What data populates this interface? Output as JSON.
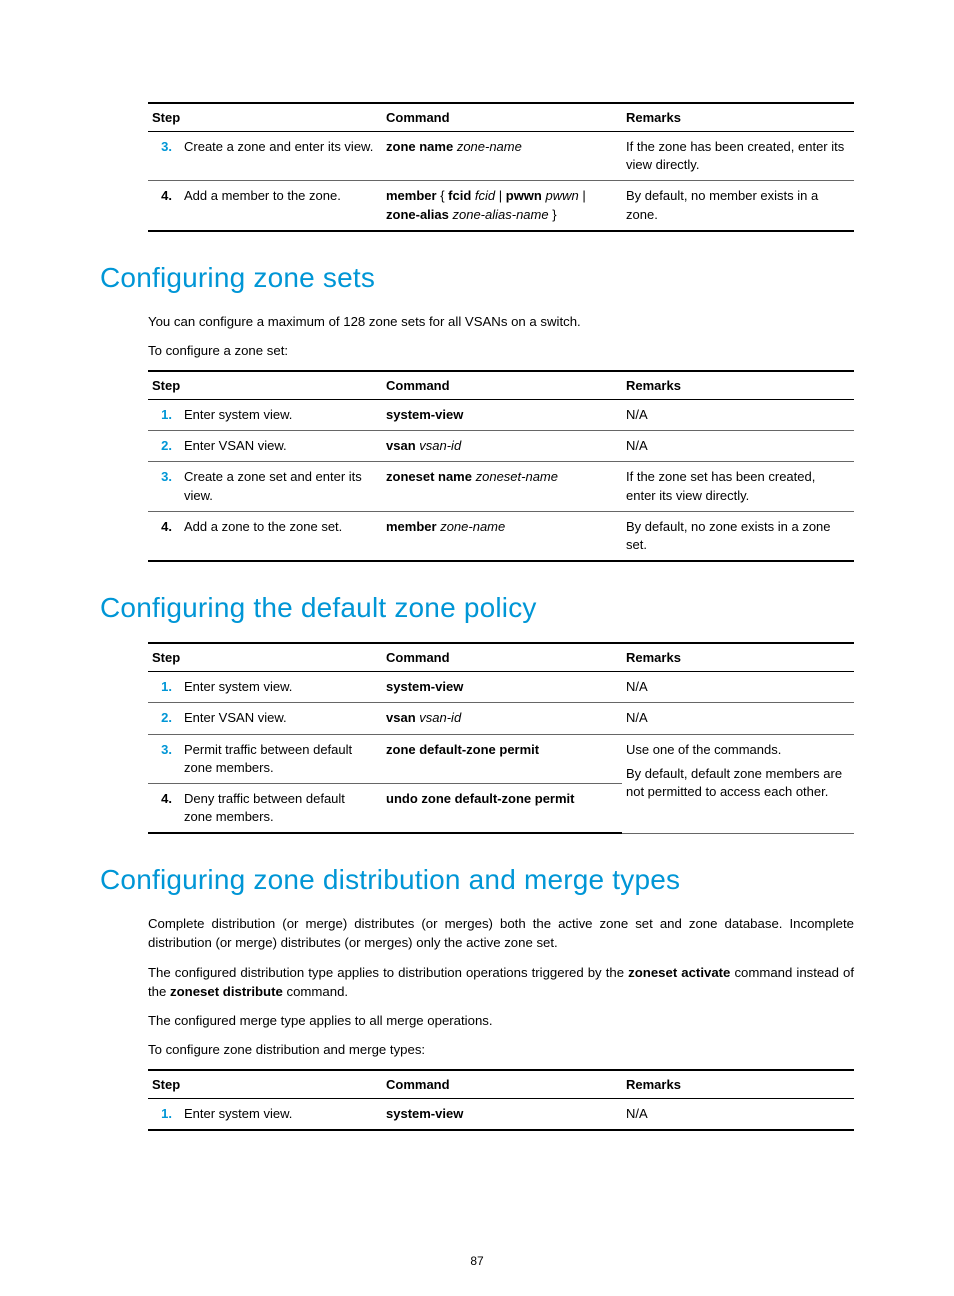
{
  "colors": {
    "accent": "#0096d6",
    "text": "#000000",
    "rule_heavy": "#000000",
    "rule_light": "#666666",
    "bg": "#ffffff"
  },
  "page_number": "87",
  "table1": {
    "headers": {
      "step": "Step",
      "command": "Command",
      "remarks": "Remarks"
    },
    "rows": [
      {
        "num": "3.",
        "num_color": "accent",
        "step": "Create a zone and enter its view.",
        "cmd_parts": [
          {
            "t": "zone name",
            "b": true
          },
          {
            "t": " "
          },
          {
            "t": "zone-name",
            "i": true
          }
        ],
        "remarks": "If the zone has been created, enter its view directly."
      },
      {
        "num": "4.",
        "num_color": "black",
        "step": "Add a member to the zone.",
        "cmd_parts": [
          {
            "t": "member",
            "b": true
          },
          {
            "t": " { "
          },
          {
            "t": "fcid",
            "b": true
          },
          {
            "t": " "
          },
          {
            "t": "fcid",
            "i": true
          },
          {
            "t": " | "
          },
          {
            "t": "pwwn",
            "b": true
          },
          {
            "t": " "
          },
          {
            "t": "pwwn",
            "i": true
          },
          {
            "t": " | "
          },
          {
            "t": "zone-alias",
            "b": true
          },
          {
            "t": " "
          },
          {
            "t": "zone-alias-name",
            "i": true
          },
          {
            "t": " }"
          }
        ],
        "remarks": "By default, no member exists in a zone."
      }
    ]
  },
  "sec_zone_sets": {
    "title": "Configuring zone sets",
    "p1": "You can configure a maximum of 128 zone sets for all VSANs on a switch.",
    "p2": "To configure a zone set:"
  },
  "table2": {
    "headers": {
      "step": "Step",
      "command": "Command",
      "remarks": "Remarks"
    },
    "rows": [
      {
        "num": "1.",
        "num_color": "accent",
        "step": "Enter system view.",
        "cmd_parts": [
          {
            "t": "system-view",
            "b": true
          }
        ],
        "remarks": "N/A"
      },
      {
        "num": "2.",
        "num_color": "accent",
        "step": "Enter VSAN view.",
        "cmd_parts": [
          {
            "t": "vsan",
            "b": true
          },
          {
            "t": " "
          },
          {
            "t": "vsan-id",
            "i": true
          }
        ],
        "remarks": "N/A"
      },
      {
        "num": "3.",
        "num_color": "accent",
        "step": "Create a zone set and enter its view.",
        "cmd_parts": [
          {
            "t": "zoneset name",
            "b": true
          },
          {
            "t": " "
          },
          {
            "t": "zoneset-name",
            "i": true
          }
        ],
        "remarks": "If the zone set has been created, enter its view directly."
      },
      {
        "num": "4.",
        "num_color": "black",
        "step": "Add a zone to the zone set.",
        "cmd_parts": [
          {
            "t": "member",
            "b": true
          },
          {
            "t": " "
          },
          {
            "t": "zone-name",
            "i": true
          }
        ],
        "remarks": "By default, no zone exists in a zone set."
      }
    ]
  },
  "sec_default_policy": {
    "title": "Configuring the default zone policy"
  },
  "table3": {
    "headers": {
      "step": "Step",
      "command": "Command",
      "remarks": "Remarks"
    },
    "rows12": [
      {
        "num": "1.",
        "num_color": "accent",
        "step": "Enter system view.",
        "cmd_parts": [
          {
            "t": "system-view",
            "b": true
          }
        ],
        "remarks": "N/A"
      },
      {
        "num": "2.",
        "num_color": "accent",
        "step": "Enter VSAN view.",
        "cmd_parts": [
          {
            "t": "vsan",
            "b": true
          },
          {
            "t": " "
          },
          {
            "t": "vsan-id",
            "i": true
          }
        ],
        "remarks": "N/A"
      }
    ],
    "row3": {
      "num": "3.",
      "num_color": "accent",
      "step": "Permit traffic between default zone members.",
      "cmd_parts": [
        {
          "t": "zone default-zone permit",
          "b": true
        }
      ]
    },
    "row4": {
      "num": "4.",
      "num_color": "black",
      "step": "Deny traffic between default zone members.",
      "cmd_parts": [
        {
          "t": "undo zone default-zone permit",
          "b": true
        }
      ]
    },
    "merged_remarks_line1": "Use one of the commands.",
    "merged_remarks_line2": "By default, default zone members are not permitted to access each other."
  },
  "sec_dist_merge": {
    "title": "Configuring zone distribution and merge types",
    "p1": "Complete distribution (or merge) distributes (or merges) both the active zone set and zone database. Incomplete distribution (or merge) distributes (or merges) only the active zone set.",
    "p2_pre": "The configured distribution type applies to distribution operations triggered by the ",
    "p2_bold1": "zoneset activate",
    "p2_mid": " command instead of the ",
    "p2_bold2": "zoneset distribute",
    "p2_post": " command.",
    "p3": "The configured merge type applies to all merge operations.",
    "p4": "To configure zone distribution and merge types:"
  },
  "table4": {
    "headers": {
      "step": "Step",
      "command": "Command",
      "remarks": "Remarks"
    },
    "row": {
      "num": "1.",
      "num_color": "accent",
      "step": "Enter system view.",
      "cmd_parts": [
        {
          "t": "system-view",
          "b": true
        }
      ],
      "remarks": "N/A"
    }
  }
}
